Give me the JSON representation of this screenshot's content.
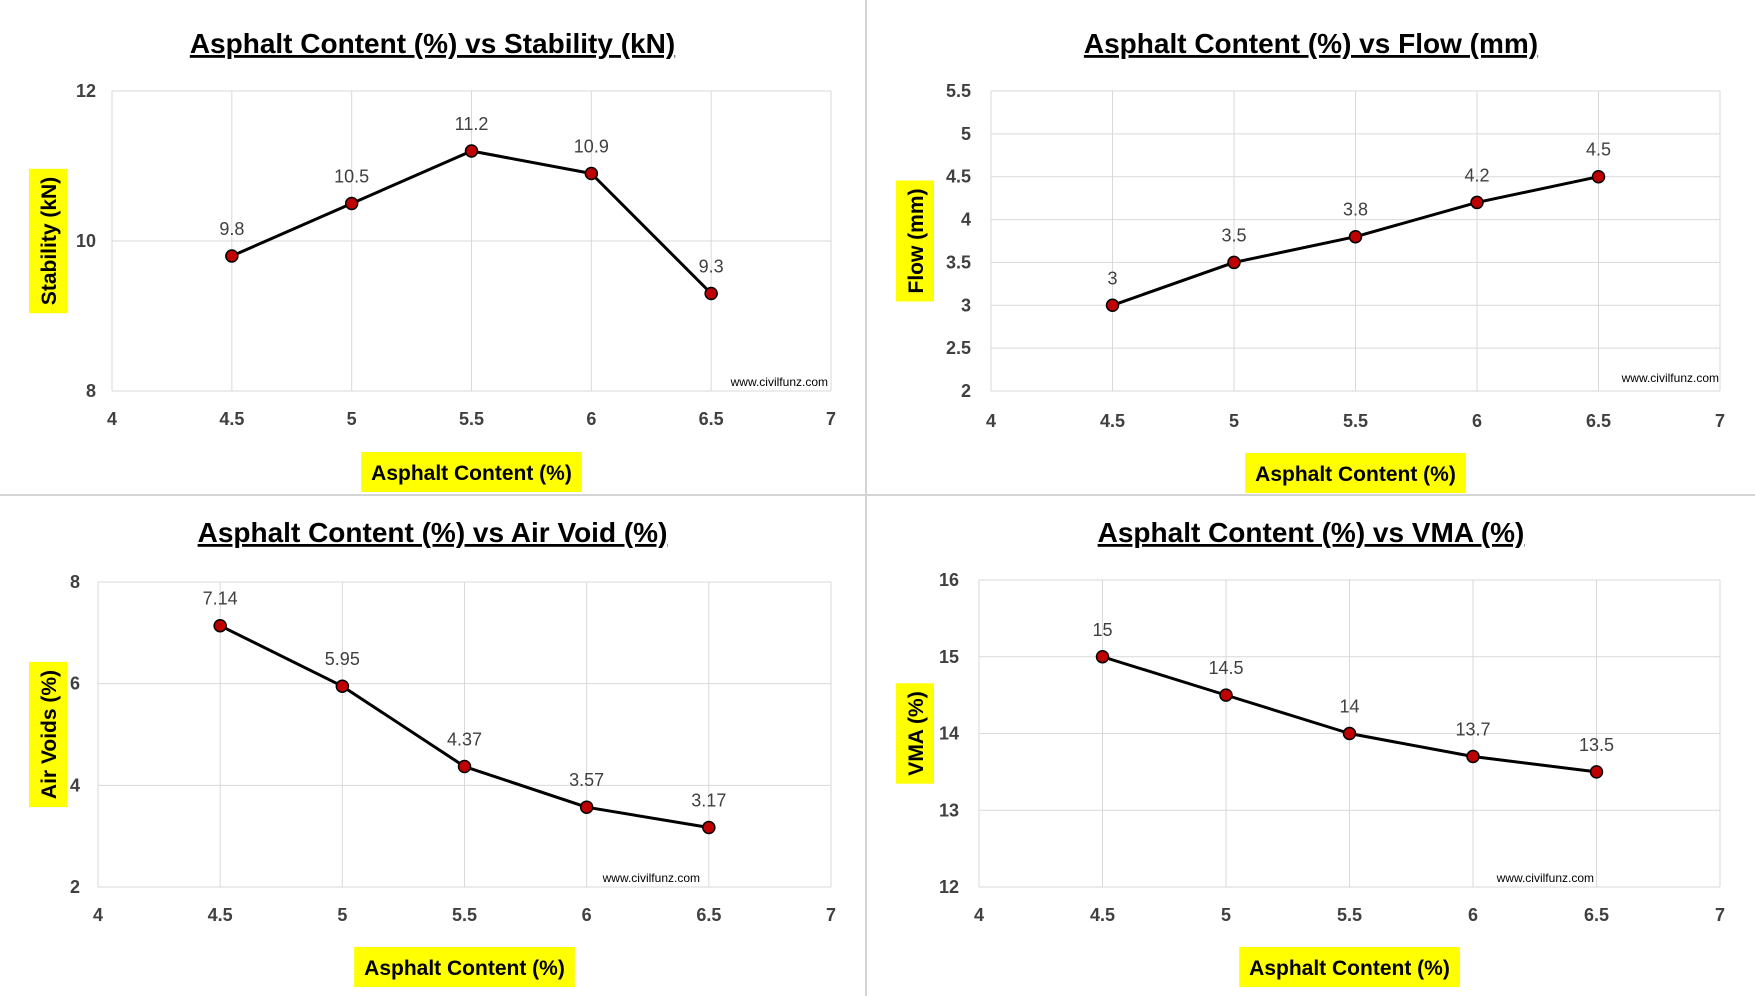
{
  "watermark": "www.civilfunz.com",
  "colors": {
    "marker_fill": "#c00000",
    "line": "#000000",
    "label_highlight": "#ffff00",
    "grid": "#d9d9d9"
  },
  "chart_data": [
    {
      "type": "line",
      "title": "Asphalt Content (%) vs Stability (kN)",
      "xlabel": "Asphalt Content (%)",
      "ylabel": "Stability (kN)",
      "xlim": [
        4,
        7
      ],
      "ylim": [
        8,
        12
      ],
      "xticks": [
        4,
        4.5,
        5,
        5.5,
        6,
        6.5,
        7
      ],
      "yticks": [
        8,
        10,
        12
      ],
      "ytick_labels": [
        "8",
        "10",
        "12"
      ],
      "x": [
        4.5,
        5,
        5.5,
        6,
        6.5
      ],
      "y": [
        9.8,
        10.5,
        11.2,
        10.9,
        9.3
      ],
      "labels": [
        "9.8",
        "10.5",
        "11.2",
        "10.9",
        "9.3"
      ],
      "grid": true
    },
    {
      "type": "line",
      "title": "Asphalt Content (%) vs Flow (mm)",
      "xlabel": "Asphalt Content (%)",
      "ylabel": "Flow (mm)",
      "xlim": [
        4,
        7
      ],
      "ylim": [
        2,
        5.5
      ],
      "xticks": [
        4,
        4.5,
        5,
        5.5,
        6,
        6.5,
        7
      ],
      "yticks": [
        2,
        2.5,
        3,
        3.5,
        4,
        4.5,
        5,
        5.5
      ],
      "ytick_labels": [
        "2",
        "2.5",
        "3",
        "3.5",
        "4",
        "4.5",
        "5",
        "5.5"
      ],
      "x": [
        4.5,
        5,
        5.5,
        6,
        6.5
      ],
      "y": [
        3,
        3.5,
        3.8,
        4.2,
        4.5
      ],
      "labels": [
        "3",
        "3.5",
        "3.8",
        "4.2",
        "4.5"
      ],
      "grid": true
    },
    {
      "type": "line",
      "title": "Asphalt Content (%) vs Air Void (%)",
      "xlabel": "Asphalt Content (%)",
      "ylabel": "Air Voids (%)",
      "xlim": [
        4,
        7
      ],
      "ylim": [
        2,
        8
      ],
      "xticks": [
        4,
        4.5,
        5,
        5.5,
        6,
        6.5,
        7
      ],
      "yticks": [
        2,
        4,
        6,
        8
      ],
      "ytick_labels": [
        "2",
        "4",
        "6",
        "8"
      ],
      "x": [
        4.5,
        5,
        5.5,
        6,
        6.5
      ],
      "y": [
        7.14,
        5.95,
        4.37,
        3.57,
        3.17
      ],
      "labels": [
        "7.14",
        "5.95",
        "4.37",
        "3.57",
        "3.17"
      ],
      "grid": true
    },
    {
      "type": "line",
      "title": "Asphalt Content (%) vs VMA (%)",
      "xlabel": "Asphalt Content (%)",
      "ylabel": "VMA (%)",
      "xlim": [
        4,
        7
      ],
      "ylim": [
        12,
        16
      ],
      "xticks": [
        4,
        4.5,
        5,
        5.5,
        6,
        6.5,
        7
      ],
      "yticks": [
        12,
        13,
        14,
        15,
        16
      ],
      "ytick_labels": [
        "12",
        "13",
        "14",
        "15",
        "16"
      ],
      "x": [
        4.5,
        5,
        5.5,
        6,
        6.5
      ],
      "y": [
        15,
        14.5,
        14,
        13.7,
        13.5
      ],
      "labels": [
        "15",
        "14.5",
        "14",
        "13.7",
        "13.5"
      ],
      "grid": true
    }
  ]
}
